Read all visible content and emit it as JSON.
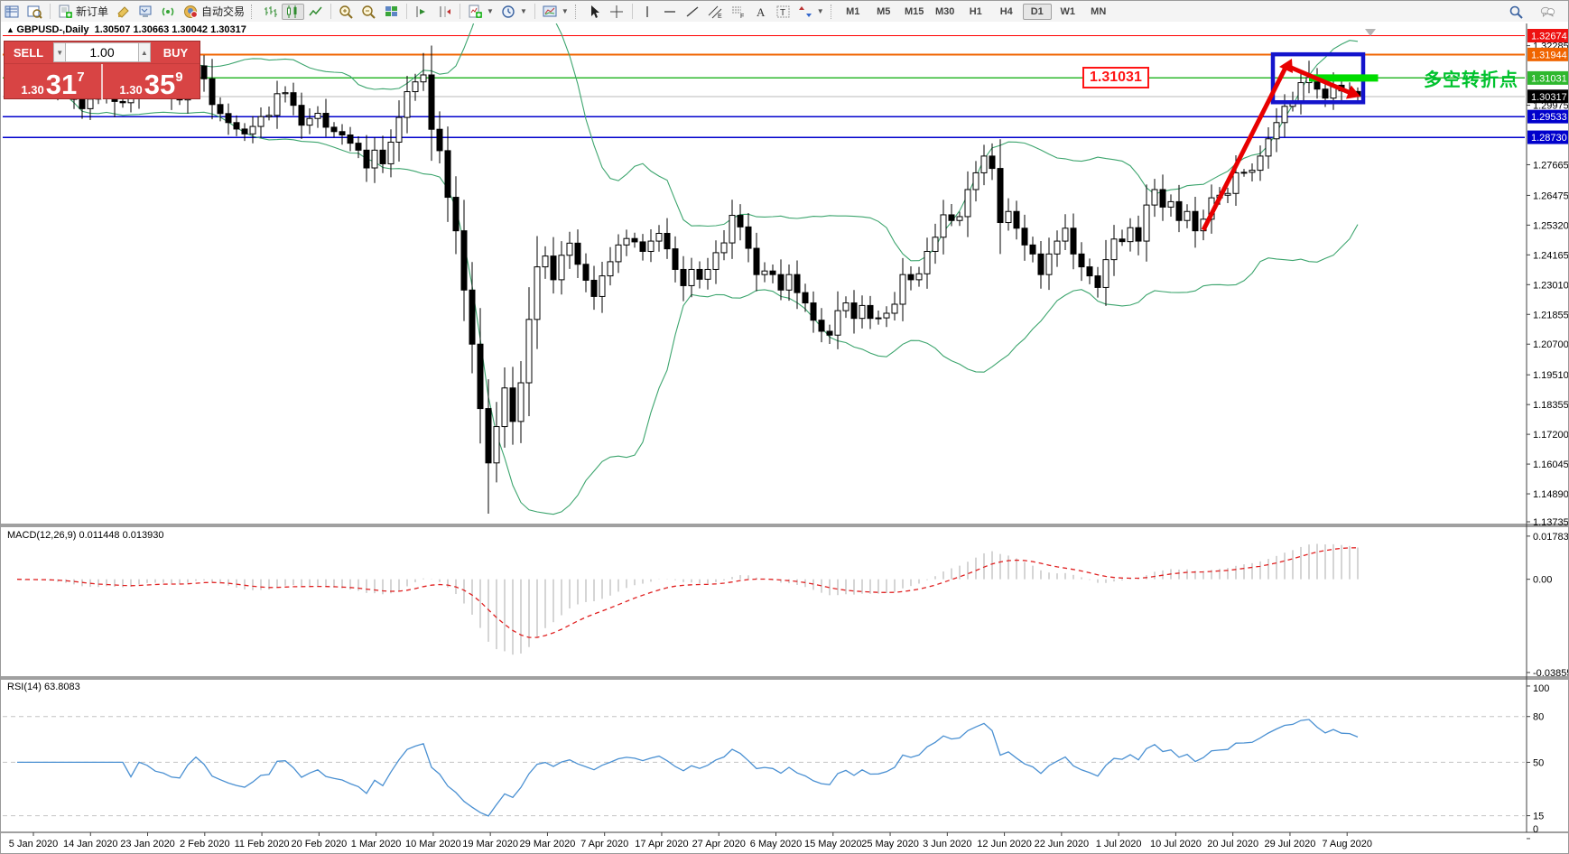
{
  "toolbar": {
    "new_order_label": "新订单",
    "autotrading_label": "自动交易",
    "timeframes": [
      "M1",
      "M5",
      "M15",
      "M30",
      "H1",
      "H4",
      "D1",
      "W1",
      "MN"
    ],
    "selected_timeframe": "D1"
  },
  "title": {
    "symbol_period": "GBPUSD-,Daily",
    "ohlc": "1.30507 1.30663 1.30042 1.30317"
  },
  "trade_panel": {
    "sell_label": "SELL",
    "buy_label": "BUY",
    "volume": "1.00",
    "sell_price_small": "1.30",
    "sell_price_big": "31",
    "sell_price_sup": "7",
    "buy_price_small": "1.30",
    "buy_price_big": "35",
    "buy_price_sup": "9"
  },
  "annotations": {
    "price_callout": "1.31031",
    "cn_note": "多空转折点"
  },
  "macd_panel": {
    "label": "MACD(12,26,9) 0.011448 0.013930",
    "ticks": [
      {
        "text": "0.017833",
        "value": 0.017833
      },
      {
        "text": "0.00",
        "value": 0.0
      },
      {
        "text": "-0.038559",
        "value": -0.038559
      }
    ]
  },
  "rsi_panel": {
    "label": "RSI(14) 63.8083",
    "levels": [
      80,
      50,
      15
    ],
    "scale_ticks": [
      {
        "text": "100",
        "value": 100
      },
      {
        "text": "80",
        "value": 80
      },
      {
        "text": "50",
        "value": 50
      },
      {
        "text": "15",
        "value": 15
      },
      {
        "text": "0",
        "value": 0
      }
    ]
  },
  "dates": [
    "5 Jan 2020",
    "14 Jan 2020",
    "23 Jan 2020",
    "2 Feb 2020",
    "11 Feb 2020",
    "20 Feb 2020",
    "1 Mar 2020",
    "10 Mar 2020",
    "19 Mar 2020",
    "29 Mar 2020",
    "7 Apr 2020",
    "17 Apr 2020",
    "27 Apr 2020",
    "6 May 2020",
    "15 May 2020",
    "25 May 2020",
    "3 Jun 2020",
    "12 Jun 2020",
    "22 Jun 2020",
    "1 Jul 2020",
    "10 Jul 2020",
    "20 Jul 2020",
    "29 Jul 2020",
    "7 Aug 2020"
  ],
  "price_scale": {
    "plain_ticks": [
      1.32285,
      1.29975,
      1.27665,
      1.26475,
      1.2532,
      1.24165,
      1.2301,
      1.21855,
      1.207,
      1.1951,
      1.18355,
      1.172,
      1.16045,
      1.1489,
      1.13735
    ],
    "highlighted": [
      {
        "price": 1.32674,
        "color": "#ee1111"
      },
      {
        "price": 1.31944,
        "color": "#f06400"
      },
      {
        "price": 1.31031,
        "color": "#2eb82e"
      },
      {
        "price": 1.30317,
        "color": "#000000"
      },
      {
        "price": 1.29533,
        "color": "#0000cc"
      },
      {
        "price": 1.2873,
        "color": "#0000cc"
      }
    ]
  },
  "chart_data": {
    "type": "candlestick",
    "symbol": "GBPUSD",
    "timeframe": "Daily",
    "ylim": [
      1.13735,
      1.33147
    ],
    "macd_ylim": [
      -0.04007,
      0.02115
    ],
    "rsi_ylim": [
      4.7,
      104.1
    ],
    "horizontal_lines": [
      {
        "price": 1.32674,
        "color": "#ff0000",
        "w": 1.4
      },
      {
        "price": 1.31944,
        "color": "#f06400",
        "w": 2
      },
      {
        "price": 1.31031,
        "color": "#2eb82e",
        "w": 1.6
      },
      {
        "price": 1.30317,
        "color": "#b8b8b8",
        "w": 1
      },
      {
        "price": 1.29533,
        "color": "#0000cc",
        "w": 1.6
      },
      {
        "price": 1.2873,
        "color": "#0000cc",
        "w": 1.6
      }
    ],
    "indicators": {
      "bollinger": {
        "period": 20,
        "deviation": 2,
        "color": "#3da56e"
      },
      "macd": {
        "fast": 12,
        "slow": 26,
        "signal": 9,
        "final_main": 0.011448,
        "final_signal": 0.01393
      },
      "rsi": {
        "period": 14,
        "final": 63.8083
      }
    },
    "drawn_objects": {
      "blue_box": {
        "price_top": 1.3195,
        "price_bottom": 1.3009,
        "from_bar": 155,
        "to_bar": 165
      },
      "trend_up_arrow": {
        "from": [
          146,
          1.2513
        ],
        "to": [
          156.5,
          1.3168
        ]
      },
      "trend_down_arrow": {
        "from": [
          156.3,
          1.315
        ],
        "to": [
          165.3,
          1.3037
        ]
      },
      "green_bar_level": 1.31031,
      "green_bar_bars": [
        159,
        167.5
      ]
    },
    "closes": [
      1.3146,
      1.3089,
      1.3166,
      1.3123,
      1.3105,
      1.3066,
      1.3061,
      1.302,
      1.2984,
      1.3021,
      1.3036,
      1.3075,
      1.3012,
      1.3007,
      1.3048,
      1.314,
      1.3117,
      1.3073,
      1.3057,
      1.3025,
      1.3018,
      1.3094,
      1.315,
      1.31,
      1.3,
      1.2965,
      1.293,
      1.2905,
      1.2886,
      1.2915,
      1.2953,
      1.2958,
      1.3042,
      1.3046,
      1.2997,
      1.292,
      1.2946,
      1.2966,
      1.2912,
      1.2895,
      1.2882,
      1.285,
      1.2823,
      1.2754,
      1.2823,
      1.277,
      1.2854,
      1.295,
      1.305,
      1.3088,
      1.3115,
      1.2904,
      1.2821,
      1.264,
      1.251,
      1.228,
      1.207,
      1.182,
      1.1609,
      1.175,
      1.19,
      1.177,
      1.192,
      1.2166,
      1.237,
      1.2412,
      1.232,
      1.2415,
      1.2462,
      1.238,
      1.2318,
      1.2255,
      1.2335,
      1.239,
      1.2455,
      1.248,
      1.2467,
      1.243,
      1.247,
      1.25,
      1.244,
      1.236,
      1.2297,
      1.236,
      1.2322,
      1.236,
      1.2425,
      1.2463,
      1.257,
      1.2525,
      1.2442,
      1.234,
      1.2354,
      1.234,
      1.228,
      1.234,
      1.227,
      1.223,
      1.2163,
      1.212,
      1.2105,
      1.22,
      1.223,
      1.217,
      1.222,
      1.217,
      1.2172,
      1.219,
      1.2225,
      1.234,
      1.232,
      1.2343,
      1.243,
      1.2485,
      1.2572,
      1.255,
      1.2565,
      1.267,
      1.2735,
      1.28,
      1.2752,
      1.2542,
      1.2585,
      1.252,
      1.2455,
      1.242,
      1.234,
      1.242,
      1.247,
      1.252,
      1.242,
      1.237,
      1.2335,
      1.229,
      1.2398,
      1.2478,
      1.2468,
      1.2522,
      1.247,
      1.261,
      1.267,
      1.2602,
      1.2623,
      1.255,
      1.2585,
      1.251,
      1.2555,
      1.2638,
      1.2648,
      1.2655,
      1.2735,
      1.2737,
      1.2745,
      1.28,
      1.2867,
      1.293,
      1.2993,
      1.301,
      1.3085,
      1.3105,
      1.306,
      1.3025,
      1.3075,
      1.3053,
      1.30507,
      1.30317
    ],
    "wick_overrides": {
      "50": {
        "h": 1.32
      },
      "58": {
        "l": 1.1412
      },
      "159": {
        "h": 1.317
      },
      "165": {
        "h": 1.30663,
        "l": 1.30042
      }
    }
  }
}
